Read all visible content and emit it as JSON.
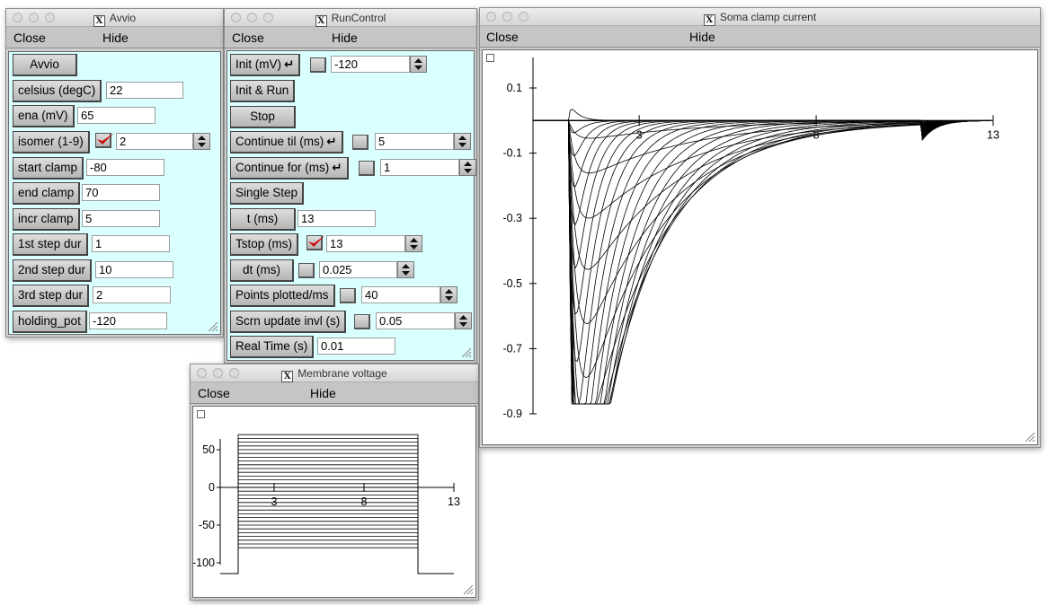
{
  "avvio": {
    "title": "Avvio",
    "menu": {
      "close": "Close",
      "hide": "Hide"
    },
    "run_label": "Avvio",
    "params": [
      {
        "label": "celsius (degC)",
        "value": "22"
      },
      {
        "label": "ena (mV)",
        "value": "65"
      },
      {
        "label": "isomer (1-9)",
        "value": "2"
      },
      {
        "label": "start clamp",
        "value": "-80"
      },
      {
        "label": "end clamp",
        "value": "70"
      },
      {
        "label": "incr clamp",
        "value": "5"
      },
      {
        "label": "1st step dur",
        "value": "1"
      },
      {
        "label": "2nd step dur",
        "value": "10"
      },
      {
        "label": "3rd step dur",
        "value": "2"
      },
      {
        "label": "holding_pot",
        "value": "-120"
      }
    ],
    "isomer_checked": true
  },
  "run_control": {
    "title": "RunControl",
    "menu": {
      "close": "Close",
      "hide": "Hide"
    },
    "init": {
      "label": "Init (mV)",
      "value": "-120"
    },
    "init_run_label": "Init & Run",
    "stop_label": "Stop",
    "continue_til": {
      "label": "Continue til (ms)",
      "value": "5"
    },
    "continue_for": {
      "label": "Continue for (ms)",
      "value": "1"
    },
    "single_step_label": "Single Step",
    "t": {
      "label": "t (ms)",
      "value": "13"
    },
    "tstop": {
      "label": "Tstop (ms)",
      "value": "13",
      "checked": true
    },
    "dt": {
      "label": "dt (ms)",
      "value": "0.025"
    },
    "points_plotted": {
      "label": "Points plotted/ms",
      "value": "40"
    },
    "scrn_update": {
      "label": "Scrn update invl (s)",
      "value": "0.05"
    },
    "real_time": {
      "label": "Real Time (s)",
      "value": "0.01"
    },
    "enter_glyph": "↵"
  },
  "membrane": {
    "title": "Membrane voltage",
    "menu": {
      "close": "Close",
      "hide": "Hide"
    },
    "chart_data": {
      "type": "line",
      "xticks": [
        "3",
        "8",
        "13"
      ],
      "yticks": [
        "50",
        "0",
        "-50",
        "-100"
      ],
      "xlim": [
        0,
        13
      ],
      "ylim": [
        -100,
        50
      ],
      "holding_mV": -120,
      "step_start_ms": 1,
      "step_end_ms": 11,
      "step_levels_mV": {
        "start": -80,
        "end": 70,
        "incr": 5
      }
    }
  },
  "soma": {
    "title": "Soma clamp current",
    "menu": {
      "close": "Close",
      "hide": "Hide"
    },
    "chart_data": {
      "type": "line",
      "xticks": [
        "3",
        "8",
        "13"
      ],
      "yticks": [
        "0.1",
        "-0.1",
        "-0.3",
        "-0.5",
        "-0.7",
        "-0.9"
      ],
      "xlim": [
        0,
        13
      ],
      "ylim": [
        -0.9,
        0.1
      ],
      "peak_current": -0.87,
      "trace_count": 31
    }
  },
  "colors": {
    "panel_bg": "#d9ffff",
    "check_red": "#cc1111"
  }
}
